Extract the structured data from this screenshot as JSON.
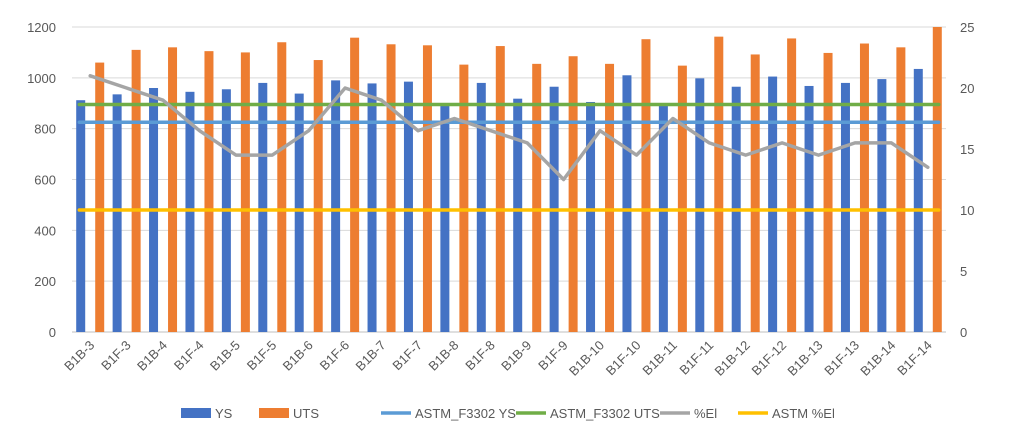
{
  "chart_data": {
    "type": "bar",
    "categories": [
      "B1B-3",
      "B1F-3",
      "B1B-4",
      "B1F-4",
      "B1B-5",
      "B1F-5",
      "B1B-6",
      "B1F-6",
      "B1B-7",
      "B1F-7",
      "B1B-8",
      "B1F-8",
      "B1B-9",
      "B1F-9",
      "B1B-10",
      "B1F-10",
      "B1B-11",
      "B1F-11",
      "B1B-12",
      "B1F-12",
      "B1B-13",
      "B1F-13",
      "B1B-14",
      "B1F-14"
    ],
    "series": [
      {
        "name": "YS",
        "type": "bar",
        "axis": "left",
        "color": "#4472C4",
        "values": [
          912,
          935,
          960,
          945,
          955,
          980,
          938,
          990,
          978,
          985,
          890,
          980,
          918,
          965,
          905,
          1010,
          890,
          998,
          965,
          1005,
          968,
          980,
          995,
          1035
        ]
      },
      {
        "name": "UTS",
        "type": "bar",
        "axis": "left",
        "color": "#ED7D31",
        "values": [
          1060,
          1110,
          1120,
          1105,
          1100,
          1140,
          1070,
          1158,
          1132,
          1128,
          1052,
          1125,
          1055,
          1085,
          1055,
          1152,
          1048,
          1162,
          1092,
          1155,
          1098,
          1135,
          1120,
          1200
        ]
      },
      {
        "name": "ASTM_F3302 YS",
        "type": "line",
        "axis": "left",
        "color": "#5B9BD5",
        "values": [
          825,
          825,
          825,
          825,
          825,
          825,
          825,
          825,
          825,
          825,
          825,
          825,
          825,
          825,
          825,
          825,
          825,
          825,
          825,
          825,
          825,
          825,
          825,
          825
        ]
      },
      {
        "name": "ASTM_F3302 UTS",
        "type": "line",
        "axis": "left",
        "color": "#70AD47",
        "values": [
          895,
          895,
          895,
          895,
          895,
          895,
          895,
          895,
          895,
          895,
          895,
          895,
          895,
          895,
          895,
          895,
          895,
          895,
          895,
          895,
          895,
          895,
          895,
          895
        ]
      },
      {
        "name": "%El",
        "type": "line",
        "axis": "right",
        "color": "#A5A5A5",
        "values": [
          21,
          20,
          19,
          16.5,
          14.5,
          14.5,
          16.5,
          20,
          19,
          16.5,
          17.5,
          16.5,
          15.5,
          12.5,
          16.5,
          14.5,
          17.5,
          15.5,
          14.5,
          15.5,
          14.5,
          15.5,
          15.5,
          13.5
        ]
      },
      {
        "name": "ASTM %El",
        "type": "line",
        "axis": "right",
        "color": "#FFC000",
        "values": [
          10,
          10,
          10,
          10,
          10,
          10,
          10,
          10,
          10,
          10,
          10,
          10,
          10,
          10,
          10,
          10,
          10,
          10,
          10,
          10,
          10,
          10,
          10,
          10
        ]
      }
    ],
    "ylim": [
      0,
      1200
    ],
    "yticks": [
      0,
      200,
      400,
      600,
      800,
      1000,
      1200
    ],
    "y2lim": [
      0,
      25
    ],
    "y2ticks": [
      0,
      5,
      10,
      15,
      20,
      25
    ],
    "grid": true,
    "legend_position": "bottom",
    "title": "",
    "xlabel": "",
    "ylabel": ""
  }
}
